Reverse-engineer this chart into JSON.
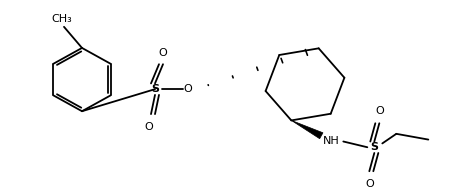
{
  "bg_color": "#ffffff",
  "lw": 1.3,
  "figsize": [
    4.58,
    1.88
  ],
  "dpi": 100,
  "xlim": [
    0,
    458
  ],
  "ylim": [
    0,
    188
  ]
}
